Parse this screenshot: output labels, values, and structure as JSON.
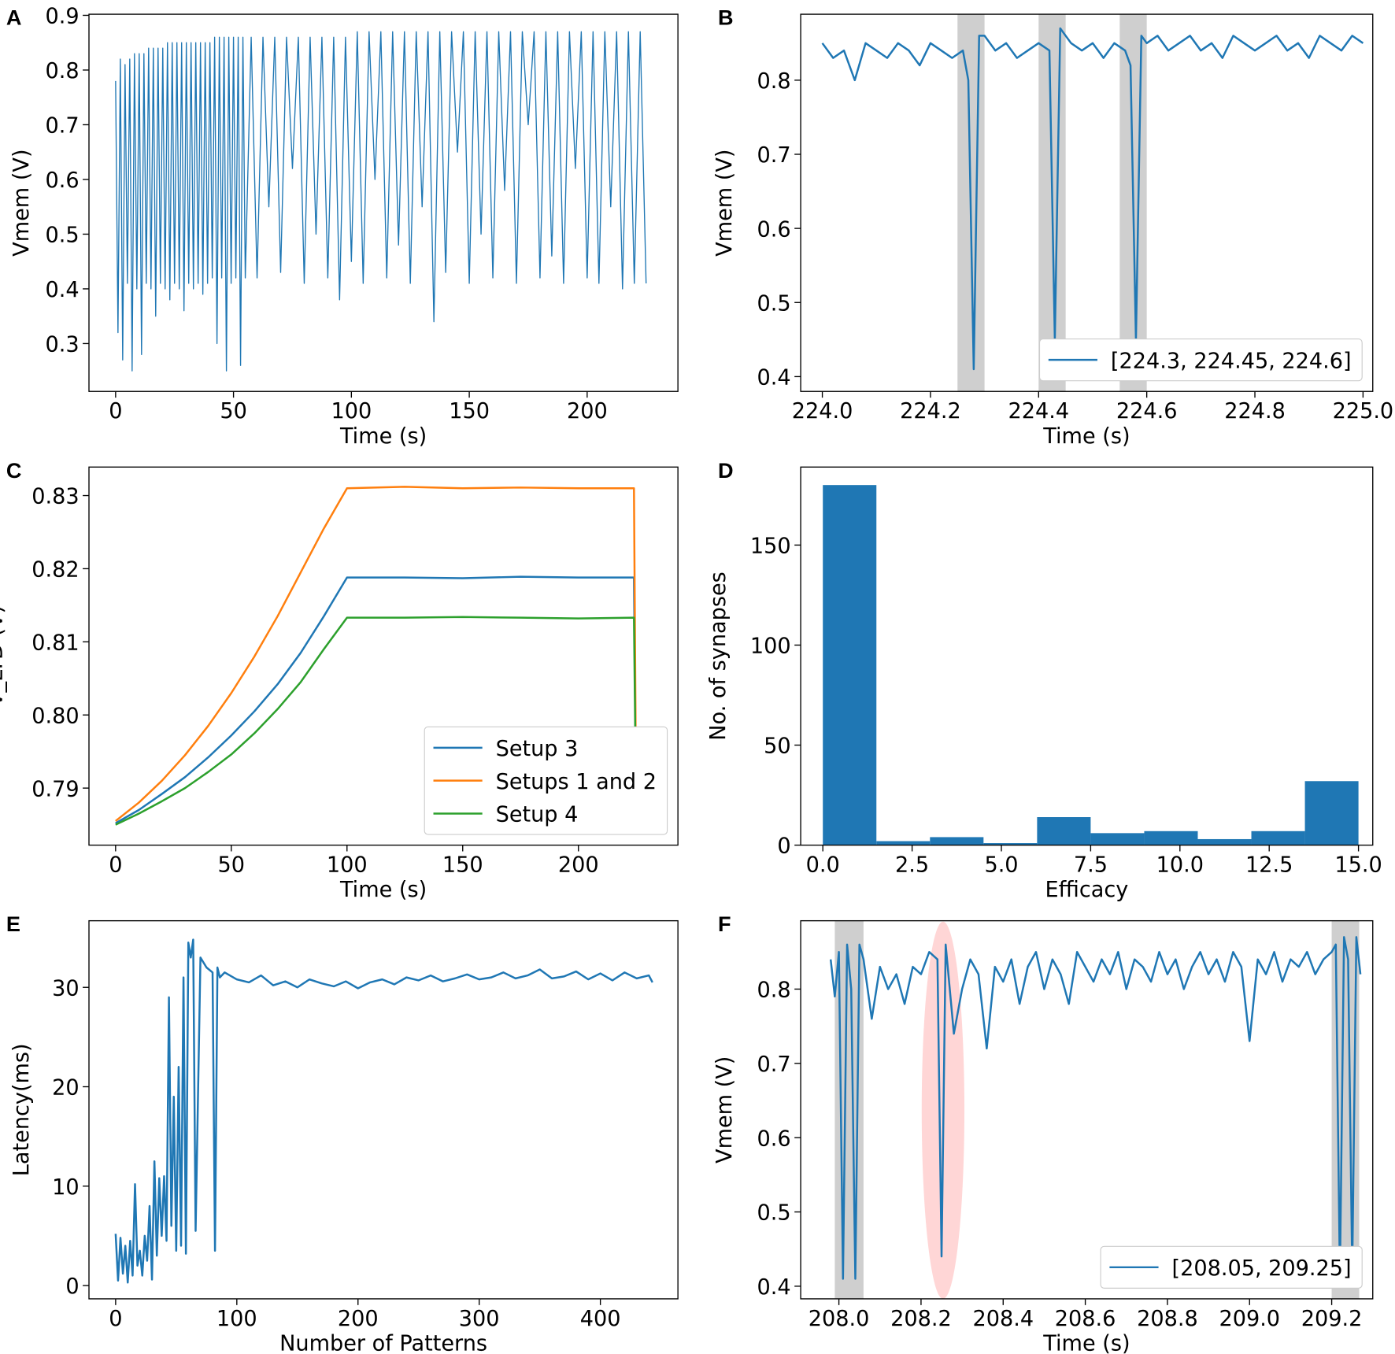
{
  "chart_data": [
    {
      "panel": "A",
      "type": "line",
      "xlabel": "Time (s)",
      "ylabel": "Vmem (V)",
      "color": "#1f77b4",
      "x": [
        0,
        1,
        2,
        3,
        4,
        5,
        6,
        7,
        8,
        9,
        10,
        11,
        12,
        13,
        14,
        15,
        16,
        17,
        18,
        19,
        20,
        21,
        22,
        23,
        24,
        25,
        26,
        27,
        28,
        29,
        30,
        31,
        32,
        33,
        34,
        35,
        36,
        37,
        38,
        39,
        40,
        41,
        42,
        43,
        44,
        45,
        46,
        47,
        48,
        49,
        50,
        51,
        52,
        53,
        54,
        55,
        57.5,
        60,
        62.5,
        65,
        67.5,
        70,
        72.5,
        75,
        77.5,
        80,
        82.5,
        85,
        87.5,
        90,
        92.5,
        95,
        97.5,
        100,
        102.5,
        105,
        107.5,
        110,
        112.5,
        115,
        117.5,
        120,
        122.5,
        125,
        127.5,
        130,
        132.5,
        135,
        137.5,
        140,
        142.5,
        145,
        147.5,
        150,
        152.5,
        155,
        157.5,
        160,
        162.5,
        165,
        167.5,
        170,
        172.5,
        175,
        177.5,
        180,
        182.5,
        185,
        187.5,
        190,
        192.5,
        195,
        197.5,
        200,
        202.5,
        205,
        207.5,
        210,
        212.5,
        215,
        217.5,
        220,
        222.5,
        225
      ],
      "values": [
        0.78,
        0.32,
        0.82,
        0.27,
        0.81,
        0.41,
        0.82,
        0.25,
        0.83,
        0.4,
        0.83,
        0.28,
        0.83,
        0.41,
        0.84,
        0.4,
        0.84,
        0.35,
        0.84,
        0.41,
        0.84,
        0.4,
        0.85,
        0.38,
        0.85,
        0.41,
        0.85,
        0.4,
        0.85,
        0.36,
        0.85,
        0.41,
        0.85,
        0.4,
        0.85,
        0.41,
        0.85,
        0.39,
        0.85,
        0.41,
        0.85,
        0.42,
        0.86,
        0.3,
        0.86,
        0.42,
        0.86,
        0.25,
        0.86,
        0.41,
        0.86,
        0.42,
        0.86,
        0.26,
        0.86,
        0.42,
        0.86,
        0.42,
        0.86,
        0.55,
        0.86,
        0.43,
        0.86,
        0.62,
        0.86,
        0.41,
        0.86,
        0.5,
        0.86,
        0.42,
        0.86,
        0.38,
        0.86,
        0.45,
        0.87,
        0.41,
        0.87,
        0.6,
        0.87,
        0.42,
        0.87,
        0.48,
        0.87,
        0.41,
        0.87,
        0.55,
        0.87,
        0.34,
        0.87,
        0.43,
        0.87,
        0.65,
        0.87,
        0.41,
        0.87,
        0.5,
        0.87,
        0.42,
        0.87,
        0.58,
        0.87,
        0.41,
        0.87,
        0.7,
        0.87,
        0.42,
        0.87,
        0.46,
        0.87,
        0.41,
        0.87,
        0.62,
        0.87,
        0.42,
        0.87,
        0.41,
        0.87,
        0.55,
        0.87,
        0.4,
        0.87,
        0.41,
        0.87,
        0.41
      ],
      "xlim": [
        -11.3,
        238.5
      ],
      "ylim": [
        0.2125,
        0.902
      ],
      "xticks": [
        0,
        50,
        100,
        150,
        200
      ],
      "yticks": [
        0.3,
        0.4,
        0.5,
        0.6,
        0.7,
        0.8,
        0.9
      ]
    },
    {
      "panel": "B",
      "type": "line",
      "xlabel": "Time (s)",
      "ylabel": "Vmem (V)",
      "legend": "lower right",
      "spans": [
        [
          224.25,
          224.3
        ],
        [
          224.4,
          224.45
        ],
        [
          224.55,
          224.6
        ]
      ],
      "span_color": "#cfcfcf",
      "x": [
        224.0,
        224.02,
        224.04,
        224.06,
        224.08,
        224.1,
        224.12,
        224.14,
        224.16,
        224.18,
        224.2,
        224.22,
        224.24,
        224.26,
        224.27,
        224.28,
        224.29,
        224.3,
        224.32,
        224.34,
        224.36,
        224.38,
        224.4,
        224.42,
        224.43,
        224.44,
        224.46,
        224.48,
        224.5,
        224.52,
        224.54,
        224.56,
        224.57,
        224.58,
        224.59,
        224.6,
        224.62,
        224.64,
        224.66,
        224.68,
        224.7,
        224.72,
        224.74,
        224.76,
        224.78,
        224.8,
        224.82,
        224.84,
        224.86,
        224.88,
        224.9,
        224.92,
        224.94,
        224.96,
        224.98,
        225.0
      ],
      "series": [
        {
          "name": "[224.3, 224.45, 224.6]",
          "color": "#1f77b4",
          "values": [
            0.85,
            0.83,
            0.84,
            0.8,
            0.85,
            0.84,
            0.83,
            0.85,
            0.84,
            0.82,
            0.85,
            0.84,
            0.83,
            0.84,
            0.8,
            0.41,
            0.86,
            0.86,
            0.84,
            0.85,
            0.83,
            0.84,
            0.85,
            0.84,
            0.45,
            0.87,
            0.85,
            0.84,
            0.85,
            0.83,
            0.85,
            0.84,
            0.82,
            0.45,
            0.86,
            0.85,
            0.86,
            0.84,
            0.85,
            0.86,
            0.84,
            0.85,
            0.83,
            0.86,
            0.85,
            0.84,
            0.85,
            0.86,
            0.84,
            0.85,
            0.83,
            0.86,
            0.85,
            0.84,
            0.86,
            0.85
          ]
        }
      ],
      "xlim": [
        223.96,
        225.018
      ],
      "ylim": [
        0.38,
        0.889
      ],
      "xticks": [
        {
          "value": 224.0,
          "label": "224.0"
        },
        224.2,
        224.4,
        224.6,
        224.8,
        {
          "value": 225.0,
          "label": "225.0"
        }
      ],
      "yticks": [
        0.4,
        0.5,
        0.6,
        0.7,
        0.8
      ]
    },
    {
      "panel": "C",
      "type": "line",
      "xlabel": "Time (s)",
      "ylabel": "V_LTD (V)",
      "legend": "lower right",
      "x": [
        0,
        10,
        20,
        30,
        40,
        50,
        60,
        70,
        80,
        90,
        100,
        125,
        150,
        175,
        200,
        224,
        225,
        232
      ],
      "series": [
        {
          "name": "Setup 3",
          "color": "#1f77b4",
          "values": [
            0.7852,
            0.787,
            0.7892,
            0.7915,
            0.7942,
            0.7972,
            0.8005,
            0.8042,
            0.8085,
            0.8135,
            0.8188,
            0.8188,
            0.8187,
            0.8189,
            0.8188,
            0.8188,
            0.785,
            0.7855
          ]
        },
        {
          "name": "Setups 1 and 2",
          "color": "#ff7f0e",
          "values": [
            0.7855,
            0.788,
            0.791,
            0.7945,
            0.7985,
            0.803,
            0.808,
            0.8135,
            0.8195,
            0.8255,
            0.831,
            0.8312,
            0.831,
            0.8311,
            0.831,
            0.831,
            0.785,
            0.7855
          ]
        },
        {
          "name": "Setup 4",
          "color": "#2ca02c",
          "values": [
            0.785,
            0.7865,
            0.7882,
            0.79,
            0.7922,
            0.7946,
            0.7975,
            0.8008,
            0.8045,
            0.809,
            0.8133,
            0.8133,
            0.8134,
            0.8133,
            0.8132,
            0.8133,
            0.785,
            0.7855
          ]
        }
      ],
      "xlim": [
        -11.5,
        243
      ],
      "ylim": [
        0.7822,
        0.8339
      ],
      "xticks": [
        0,
        50,
        100,
        150,
        200
      ],
      "yticks": [
        0.79,
        {
          "value": 0.8,
          "label": "0.80"
        },
        0.81,
        0.82,
        0.83
      ]
    },
    {
      "panel": "D",
      "type": "hist",
      "xlabel": "Efficacy",
      "ylabel": "No. of synapses",
      "color": "#1f77b4",
      "bins": [
        0,
        1.5,
        3,
        4.5,
        6,
        7.5,
        9,
        10.5,
        12,
        13.5,
        15
      ],
      "counts": [
        180,
        2,
        4,
        1,
        14,
        6,
        7,
        3,
        7,
        32
      ],
      "xlim": [
        -0.62,
        15.4
      ],
      "ylim": [
        0,
        189
      ],
      "xticks": [
        {
          "value": 0,
          "label": "0.0"
        },
        2.5,
        {
          "value": 5,
          "label": "5.0"
        },
        7.5,
        {
          "value": 10,
          "label": "10.0"
        },
        12.5,
        {
          "value": 15,
          "label": "15.0"
        }
      ],
      "yticks": [
        0,
        50,
        100,
        150
      ]
    },
    {
      "panel": "E",
      "type": "line",
      "xlabel": "Number of Patterns",
      "ylabel": "Latency(ms)",
      "color": "#1f77b4",
      "x": [
        0,
        2,
        4,
        6,
        8,
        10,
        12,
        14,
        16,
        18,
        20,
        22,
        24,
        26,
        28,
        30,
        32,
        34,
        36,
        38,
        40,
        42,
        44,
        46,
        48,
        50,
        52,
        54,
        56,
        58,
        60,
        62,
        64,
        66,
        70,
        75,
        80,
        82,
        84,
        86,
        90,
        100,
        110,
        120,
        130,
        140,
        150,
        160,
        170,
        180,
        190,
        200,
        210,
        220,
        230,
        240,
        250,
        260,
        270,
        280,
        290,
        300,
        310,
        320,
        330,
        340,
        350,
        360,
        370,
        380,
        390,
        400,
        410,
        420,
        430,
        440,
        443
      ],
      "values": [
        5.2,
        0.5,
        4.8,
        1.2,
        4.0,
        0.3,
        4.5,
        1.0,
        10.2,
        2.0,
        3.5,
        1.0,
        5.0,
        2.5,
        8.0,
        0.6,
        12.5,
        3.0,
        10.8,
        5.0,
        11.0,
        4.5,
        29.0,
        6.0,
        19.0,
        3.5,
        22.0,
        4.0,
        31.0,
        3.2,
        34.5,
        33.0,
        34.8,
        5.5,
        33.0,
        32.0,
        31.5,
        3.5,
        32.0,
        31.0,
        31.5,
        30.8,
        30.5,
        31.2,
        30.2,
        30.6,
        30.0,
        30.8,
        30.4,
        30.1,
        30.6,
        29.9,
        30.5,
        30.8,
        30.3,
        31.0,
        30.7,
        31.2,
        30.6,
        30.9,
        31.3,
        30.8,
        31.0,
        31.5,
        30.9,
        31.2,
        31.8,
        30.9,
        31.1,
        31.6,
        30.8,
        31.4,
        30.7,
        31.5,
        30.9,
        31.2,
        30.5
      ],
      "xlim": [
        -22,
        464
      ],
      "ylim": [
        -1.34,
        36.7
      ],
      "xticks": [
        0,
        100,
        200,
        300,
        400
      ],
      "yticks": [
        0,
        10,
        20,
        30
      ]
    },
    {
      "panel": "F",
      "type": "line",
      "xlabel": "Time (s)",
      "ylabel": "Vmem (V)",
      "legend": "lower right",
      "spans": [
        [
          207.99,
          208.06
        ],
        [
          209.2,
          209.267
        ]
      ],
      "span_color": "#cfcfcf",
      "x": [
        207.98,
        207.99,
        208.0,
        208.01,
        208.02,
        208.03,
        208.04,
        208.05,
        208.06,
        208.08,
        208.1,
        208.12,
        208.14,
        208.16,
        208.18,
        208.2,
        208.22,
        208.24,
        208.25,
        208.26,
        208.28,
        208.3,
        208.32,
        208.34,
        208.36,
        208.38,
        208.4,
        208.42,
        208.44,
        208.46,
        208.48,
        208.5,
        208.52,
        208.54,
        208.56,
        208.58,
        208.6,
        208.62,
        208.64,
        208.66,
        208.68,
        208.7,
        208.72,
        208.74,
        208.76,
        208.78,
        208.8,
        208.82,
        208.84,
        208.86,
        208.88,
        208.9,
        208.92,
        208.94,
        208.96,
        208.98,
        209.0,
        209.02,
        209.04,
        209.06,
        209.08,
        209.1,
        209.12,
        209.14,
        209.16,
        209.18,
        209.2,
        209.21,
        209.22,
        209.23,
        209.24,
        209.25,
        209.26,
        209.27
      ],
      "series": [
        {
          "name": "[208.05, 209.25]",
          "color": "#1f77b4",
          "values": [
            0.84,
            0.79,
            0.85,
            0.41,
            0.86,
            0.8,
            0.41,
            0.86,
            0.84,
            0.76,
            0.83,
            0.8,
            0.82,
            0.78,
            0.83,
            0.82,
            0.85,
            0.84,
            0.44,
            0.86,
            0.74,
            0.8,
            0.84,
            0.82,
            0.72,
            0.83,
            0.81,
            0.84,
            0.78,
            0.83,
            0.85,
            0.8,
            0.84,
            0.82,
            0.78,
            0.85,
            0.83,
            0.81,
            0.84,
            0.82,
            0.85,
            0.8,
            0.84,
            0.83,
            0.81,
            0.85,
            0.82,
            0.84,
            0.8,
            0.83,
            0.85,
            0.82,
            0.84,
            0.81,
            0.85,
            0.83,
            0.73,
            0.84,
            0.82,
            0.85,
            0.81,
            0.84,
            0.83,
            0.85,
            0.82,
            0.84,
            0.85,
            0.86,
            0.41,
            0.87,
            0.84,
            0.42,
            0.87,
            0.82
          ]
        }
      ],
      "xlim": [
        207.907,
        209.3
      ],
      "ylim": [
        0.383,
        0.892
      ],
      "xticks": [
        {
          "value": 208.0,
          "label": "208.0"
        },
        208.2,
        208.4,
        208.6,
        208.8,
        {
          "value": 209.0,
          "label": "209.0"
        },
        209.2
      ],
      "yticks": [
        0.4,
        0.5,
        0.6,
        0.7,
        0.8
      ]
    }
  ]
}
